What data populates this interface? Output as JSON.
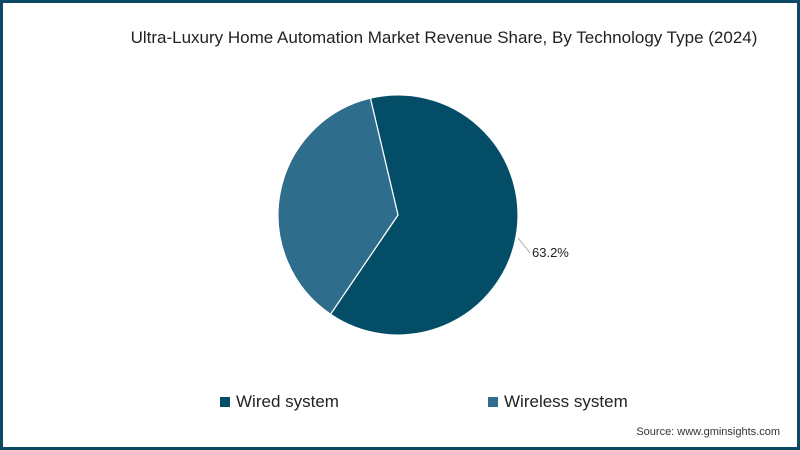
{
  "chart_data": {
    "type": "pie",
    "title": "Ultra-Luxury Home Automation Market Revenue Share, By Technology Type (2024)",
    "categories": [
      "Wired system",
      "Wireless system"
    ],
    "values": [
      63.2,
      36.8
    ],
    "colors": [
      "#044d66",
      "#2f6d8c"
    ],
    "data_labels": [
      "63.2%",
      ""
    ],
    "legend_position": "bottom",
    "start_angle_deg": -13.3,
    "direction": "clockwise"
  },
  "title": "Ultra-Luxury Home Automation Market Revenue Share, By Technology Type (2024)",
  "label_wired": "63.2%",
  "legend": [
    {
      "label": "Wired system",
      "color": "#044d66"
    },
    {
      "label": "Wireless system",
      "color": "#2f6d8c"
    }
  ],
  "source": "Source: www.gminsights.com",
  "colors": {
    "border": "#0b4a63"
  }
}
